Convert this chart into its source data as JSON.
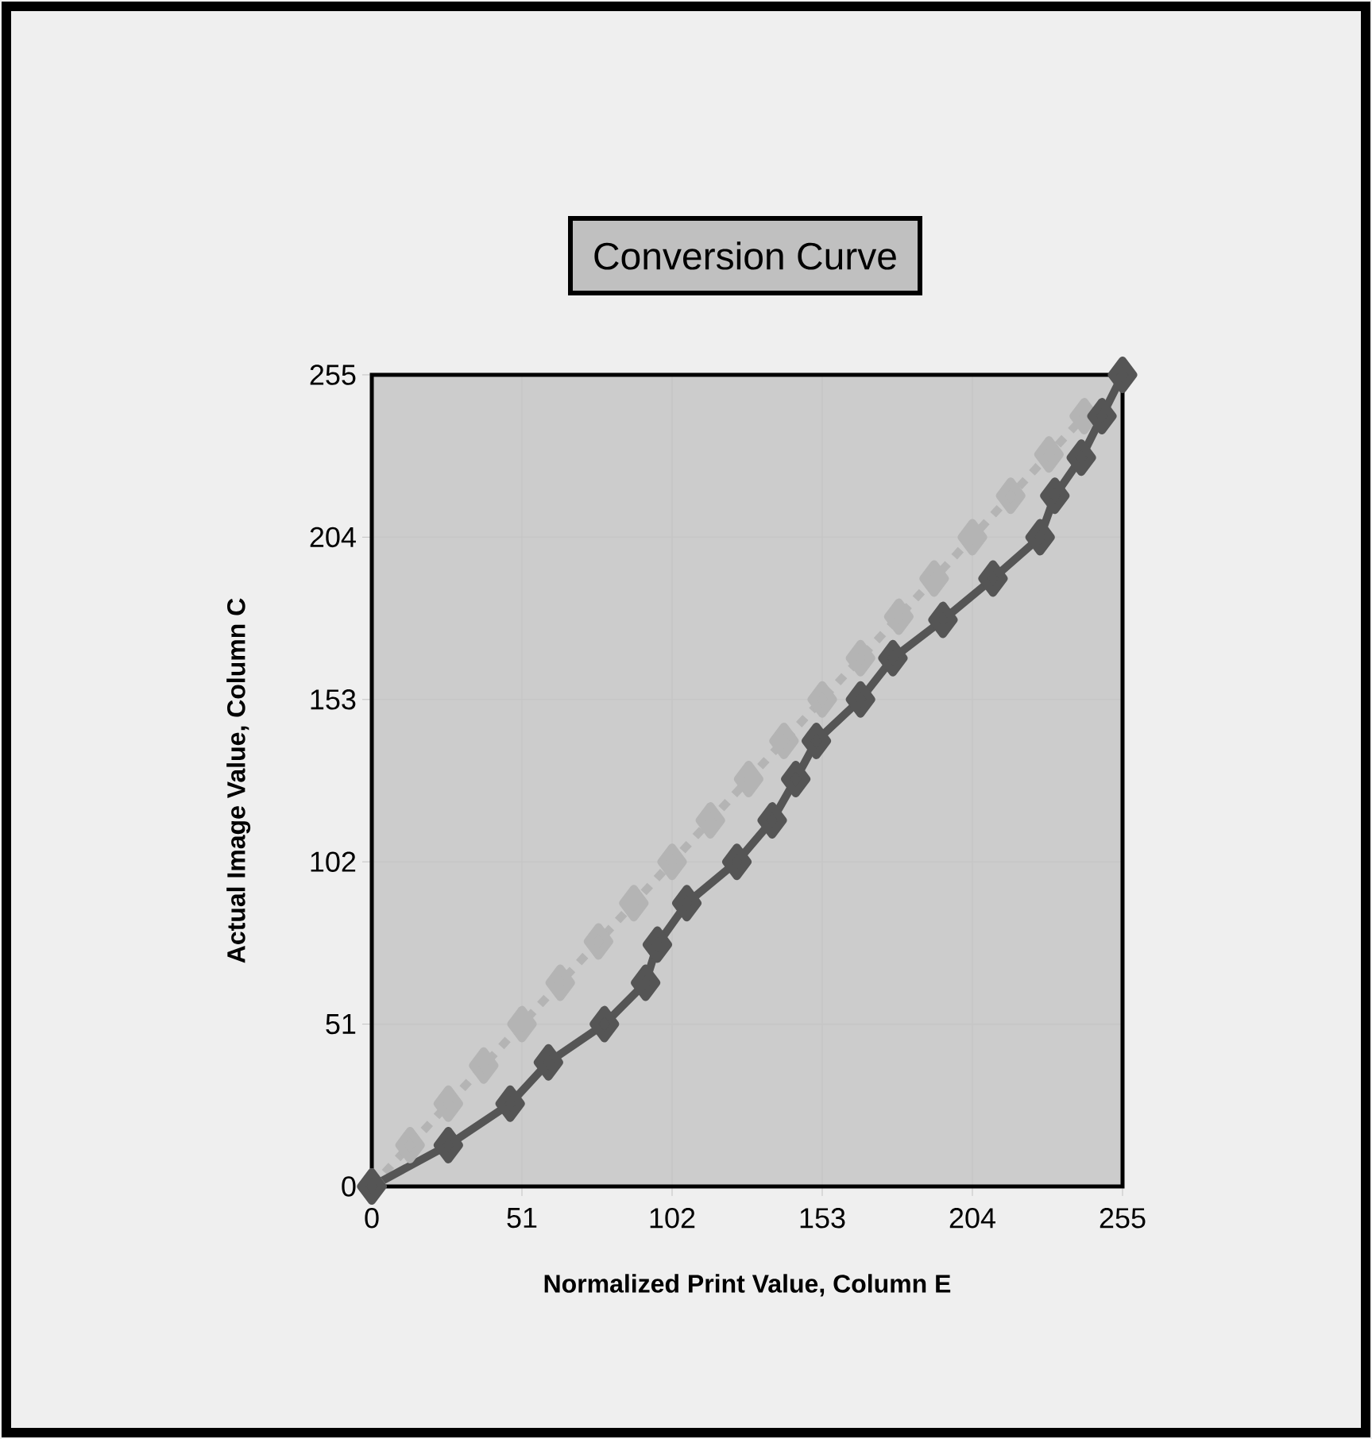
{
  "chart_data": {
    "type": "line",
    "title": "Conversion Curve",
    "xlabel": "Normalized Print Value, Column E",
    "ylabel": "Actual Image Value, Column C",
    "xlim": [
      0,
      255
    ],
    "ylim": [
      0,
      255
    ],
    "xticks": [
      0,
      51,
      102,
      153,
      204,
      255
    ],
    "yticks": [
      0,
      51,
      102,
      153,
      204,
      255
    ],
    "grid": true,
    "marker": "diamond",
    "series": [
      {
        "color": "#b4b4b4",
        "line_style": "dotted",
        "x": [
          0,
          13,
          26,
          38,
          51,
          64,
          77,
          89,
          102,
          115,
          128,
          140,
          153,
          166,
          179,
          191,
          204,
          217,
          230,
          242
        ],
        "values": [
          0,
          13,
          26,
          38,
          51,
          64,
          77,
          89,
          102,
          115,
          128,
          140,
          153,
          166,
          179,
          191,
          204,
          217,
          230,
          242
        ]
      },
      {
        "color": "#555555",
        "line_style": "solid",
        "x": [
          0,
          26,
          47,
          60,
          79,
          93,
          97,
          107,
          124,
          136,
          144,
          151,
          166,
          177,
          194,
          211,
          227,
          232,
          241,
          248,
          255
        ],
        "values": [
          0,
          13,
          26,
          39,
          51,
          64,
          76,
          89,
          102,
          115,
          128,
          140,
          153,
          166,
          178,
          191,
          204,
          217,
          229,
          242,
          255
        ]
      }
    ]
  }
}
